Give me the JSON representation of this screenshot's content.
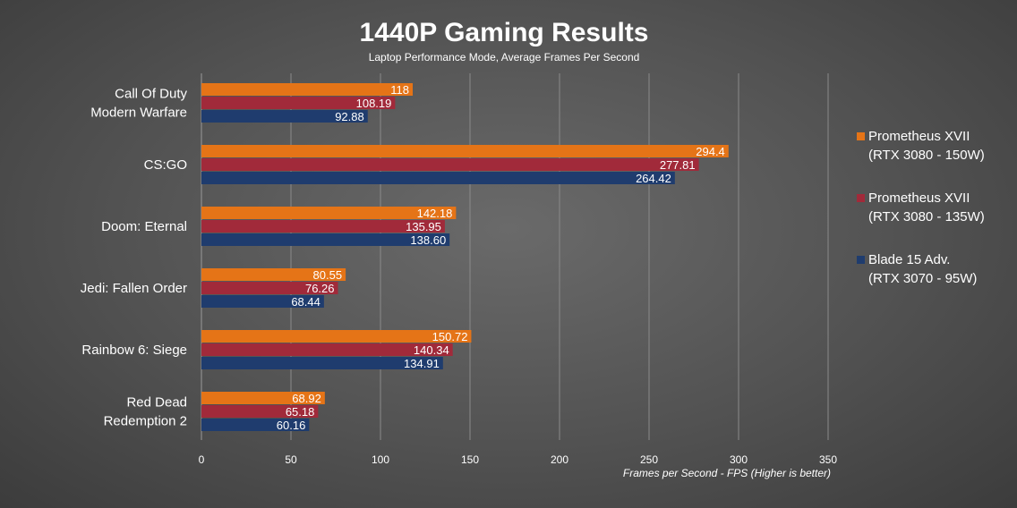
{
  "chart_data": {
    "type": "bar",
    "orientation": "horizontal",
    "title": "1440P Gaming Results",
    "subtitle": "Laptop Performance Mode, Average Frames Per Second",
    "xlabel": "Frames per Second - FPS (Higher is better)",
    "ylabel": "",
    "xlim": [
      0,
      350
    ],
    "xticks": [
      0,
      50,
      100,
      150,
      200,
      250,
      300,
      350
    ],
    "grid": true,
    "legend_position": "right",
    "categories": [
      [
        "Call Of Duty",
        "Modern Warfare"
      ],
      [
        "CS:GO"
      ],
      [
        "Doom: Eternal"
      ],
      [
        "Jedi: Fallen Order"
      ],
      [
        "Rainbow 6: Siege"
      ],
      [
        "Red Dead",
        "Redemption 2"
      ]
    ],
    "series": [
      {
        "name": [
          "Prometheus XVII",
          "(RTX 3080 - 150W)"
        ],
        "color": "#e57417",
        "values": [
          118,
          294.4,
          142.18,
          80.55,
          150.72,
          68.92
        ],
        "labels": [
          "118",
          "294.4",
          "142.18",
          "80.55",
          "150.72",
          "68.92"
        ]
      },
      {
        "name": [
          "Prometheus XVII",
          "(RTX 3080 - 135W)"
        ],
        "color": "#a12a3a",
        "values": [
          108.19,
          277.81,
          135.95,
          76.26,
          140.34,
          65.18
        ],
        "labels": [
          "108.19",
          "277.81",
          "135.95",
          "76.26",
          "140.34",
          "65.18"
        ]
      },
      {
        "name": [
          "Blade 15 Adv.",
          "(RTX 3070 - 95W)"
        ],
        "color": "#1f3c6e",
        "values": [
          92.88,
          264.42,
          138.6,
          68.44,
          134.91,
          60.16
        ],
        "labels": [
          "92.88",
          "264.42",
          "138.60",
          "68.44",
          "134.91",
          "60.16"
        ]
      }
    ]
  }
}
